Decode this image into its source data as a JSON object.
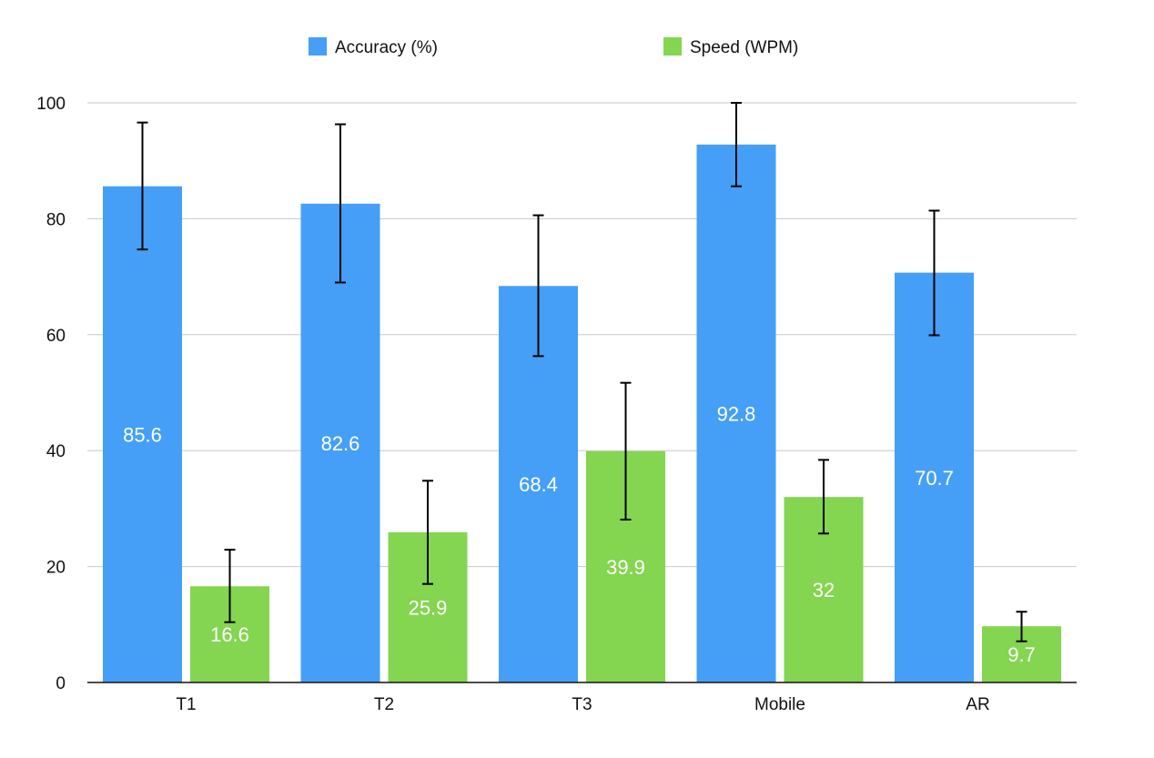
{
  "chart_data": {
    "type": "bar",
    "title": "",
    "xlabel": "",
    "ylabel": "",
    "categories": [
      "T1",
      "T2",
      "T3",
      "Mobile",
      "AR"
    ],
    "series": [
      {
        "name": "Accuracy (%)",
        "color": "#459ff6",
        "values": [
          85.6,
          82.6,
          68.4,
          92.8,
          70.7
        ],
        "labels": [
          "85.6",
          "82.6",
          "68.4",
          "92.8",
          "70.7"
        ],
        "error_low": [
          74.7,
          69.0,
          56.3,
          85.6,
          59.9
        ],
        "error_high": [
          96.6,
          96.3,
          80.6,
          100.0,
          81.4
        ]
      },
      {
        "name": "Speed (WPM)",
        "color": "#84d550",
        "values": [
          16.6,
          25.9,
          39.9,
          32,
          9.7
        ],
        "labels": [
          "16.6",
          "25.9",
          "39.9",
          "32",
          "9.7"
        ],
        "error_low": [
          10.4,
          17.0,
          28.1,
          25.7,
          7.1
        ],
        "error_high": [
          22.9,
          34.8,
          51.7,
          38.4,
          12.2
        ]
      }
    ],
    "ylim": [
      0,
      100
    ],
    "yticks": [
      0,
      20,
      40,
      60,
      80,
      100
    ],
    "ytick_labels": [
      "0",
      "20",
      "40",
      "60",
      "80",
      "100"
    ],
    "grid": true,
    "legend_position": "top-center"
  }
}
